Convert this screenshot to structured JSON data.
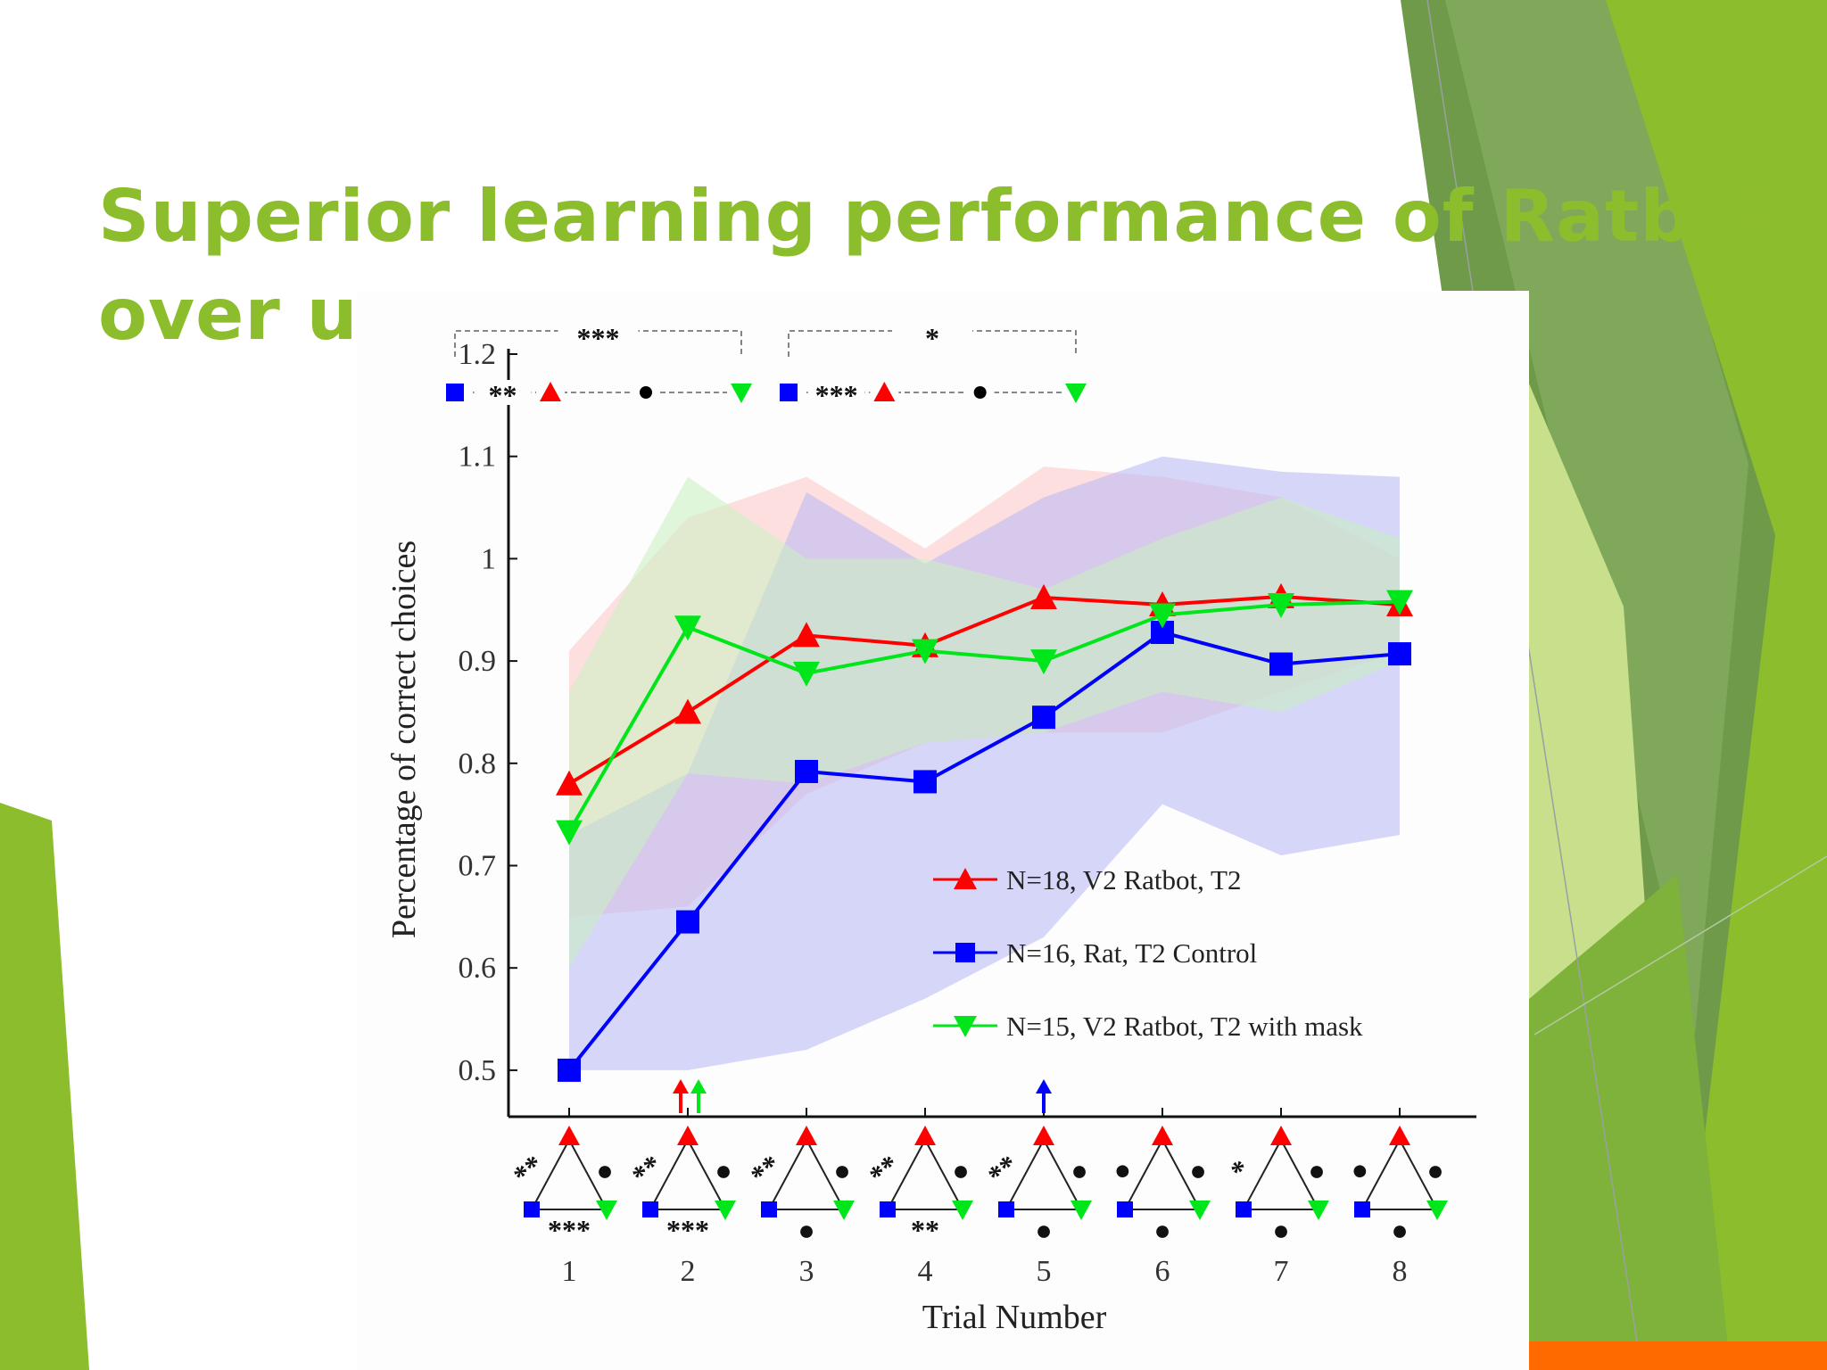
{
  "slide": {
    "title_line1": "Superior learning performance of Ratbots",
    "title_line2": "over u",
    "accent_color": "#8cbd2c",
    "highlight_color": "#ff6a00"
  },
  "chart_data": {
    "type": "line",
    "xlabel": "Trial Number",
    "ylabel": "Percentage of correct choices",
    "x": [
      1,
      2,
      3,
      4,
      5,
      6,
      7,
      8
    ],
    "ylim": [
      0.45,
      1.2
    ],
    "yticks": [
      0.5,
      0.6,
      0.7,
      0.8,
      0.9,
      1,
      1.1,
      1.2
    ],
    "ytick_labels": [
      "0.5",
      "0.6",
      "0.7",
      "0.8",
      "0.9",
      "1",
      "1.1",
      "1.2"
    ],
    "grid": false,
    "legend_position": "center-right",
    "series": [
      {
        "name": "N=18, V2 Ratbot, T2",
        "color": "#ff0000",
        "marker": "triangle-up",
        "values": [
          0.78,
          0.85,
          0.925,
          0.915,
          0.962,
          0.955,
          0.963,
          0.955
        ],
        "band_upper": [
          0.91,
          1.04,
          1.08,
          1.01,
          1.09,
          1.08,
          1.06,
          1.0
        ],
        "band_lower": [
          0.65,
          0.66,
          0.77,
          0.82,
          0.83,
          0.83,
          0.87,
          0.91
        ]
      },
      {
        "name": "N=16, Rat, T2 Control",
        "color": "#0000ff",
        "marker": "square",
        "values": [
          0.5,
          0.645,
          0.792,
          0.782,
          0.845,
          0.928,
          0.897,
          0.907
        ],
        "band_upper": [
          0.73,
          0.79,
          1.065,
          0.995,
          1.06,
          1.1,
          1.085,
          1.08
        ],
        "band_lower": [
          0.5,
          0.5,
          0.52,
          0.57,
          0.63,
          0.76,
          0.71,
          0.73
        ]
      },
      {
        "name": "N=15, V2 Ratbot, T2 with mask",
        "color": "#00e61a",
        "marker": "triangle-down",
        "values": [
          0.733,
          0.933,
          0.888,
          0.91,
          0.9,
          0.945,
          0.955,
          0.958
        ],
        "band_upper": [
          0.87,
          1.08,
          1.0,
          1.0,
          0.97,
          1.02,
          1.06,
          1.02
        ],
        "band_lower": [
          0.6,
          0.79,
          0.78,
          0.82,
          0.83,
          0.87,
          0.85,
          0.9
        ]
      }
    ],
    "significance_top": [
      {
        "bracket": "***",
        "pair": "**"
      },
      {
        "bracket": "*",
        "pair": "***"
      }
    ],
    "trial_triangles": [
      {
        "left": "**",
        "right": "●",
        "bottom": "***"
      },
      {
        "left": "**",
        "right": "●",
        "bottom": "***"
      },
      {
        "left": "**",
        "right": "●",
        "bottom": "●"
      },
      {
        "left": "**",
        "right": "●",
        "bottom": "**"
      },
      {
        "left": "**",
        "right": "●",
        "bottom": "●"
      },
      {
        "left": "●",
        "right": "●",
        "bottom": "●"
      },
      {
        "left": "*",
        "right": "●",
        "bottom": "●"
      },
      {
        "left": "●",
        "right": "●",
        "bottom": "●"
      }
    ],
    "arrows": [
      {
        "x": 2,
        "color": "#ff0000"
      },
      {
        "x": 2,
        "color": "#00e61a"
      },
      {
        "x": 5,
        "color": "#0000ff"
      }
    ]
  }
}
